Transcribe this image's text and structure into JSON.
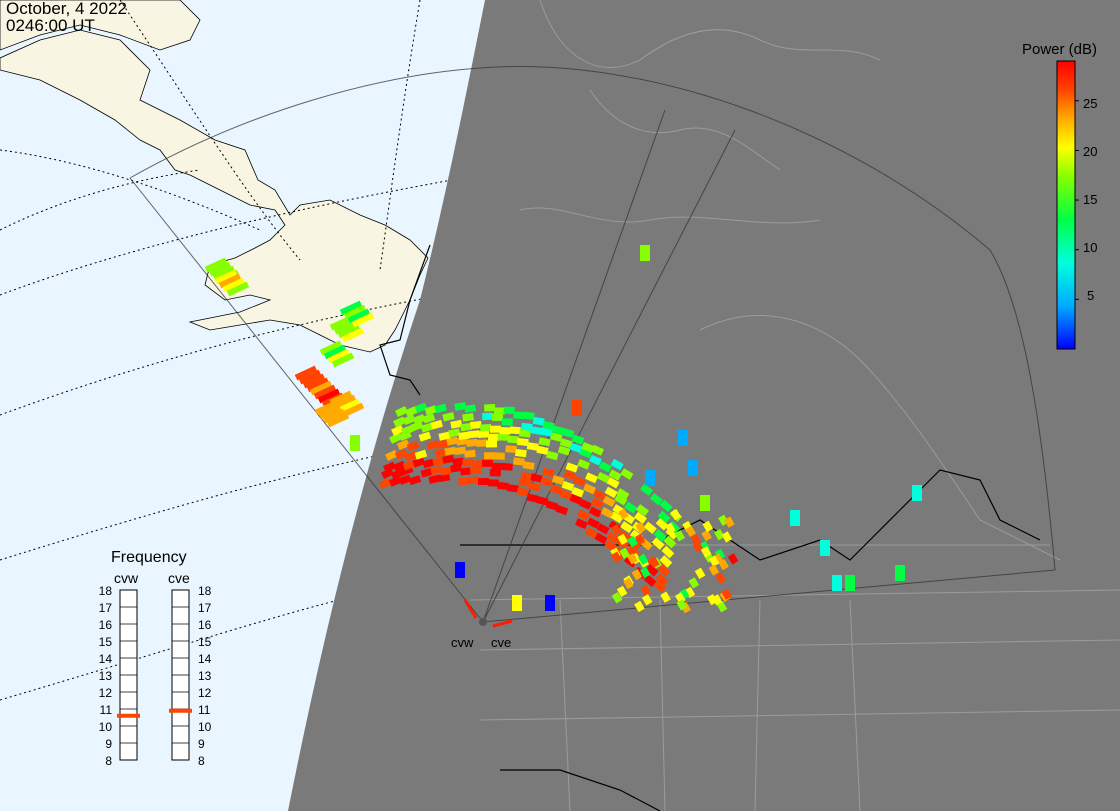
{
  "header": {
    "date": "October, 4 2022",
    "time": "0246:00 UT"
  },
  "colorbar": {
    "title": "Power (dB)",
    "ticks": [
      "25",
      "20",
      "15",
      "10",
      "5"
    ],
    "tick_values": [
      25,
      20,
      15,
      10,
      5
    ],
    "range": [
      0,
      29
    ],
    "colors": [
      "#0000ff",
      "#00aaff",
      "#00ffdd",
      "#00ff44",
      "#88ff00",
      "#ffff00",
      "#ffaa00",
      "#ff4400",
      "#ff0000"
    ]
  },
  "frequency_panel": {
    "title": "Frequency",
    "radars": [
      {
        "name": "cvw",
        "selected_mhz": 10.6
      },
      {
        "name": "cve",
        "selected_mhz": 10.9
      }
    ],
    "scale": [
      "18",
      "17",
      "16",
      "15",
      "14",
      "13",
      "12",
      "11",
      "10",
      "9",
      "8"
    ],
    "marker_color": "#ff4400"
  },
  "radar_labels": [
    "cvw",
    "cve"
  ],
  "map_colors": {
    "ocean": "#eaf6ff",
    "land": "#f8f5e2",
    "night": "#7a7a7a",
    "borders_night": "#9b9b9b",
    "borders_day": "#000000"
  }
}
